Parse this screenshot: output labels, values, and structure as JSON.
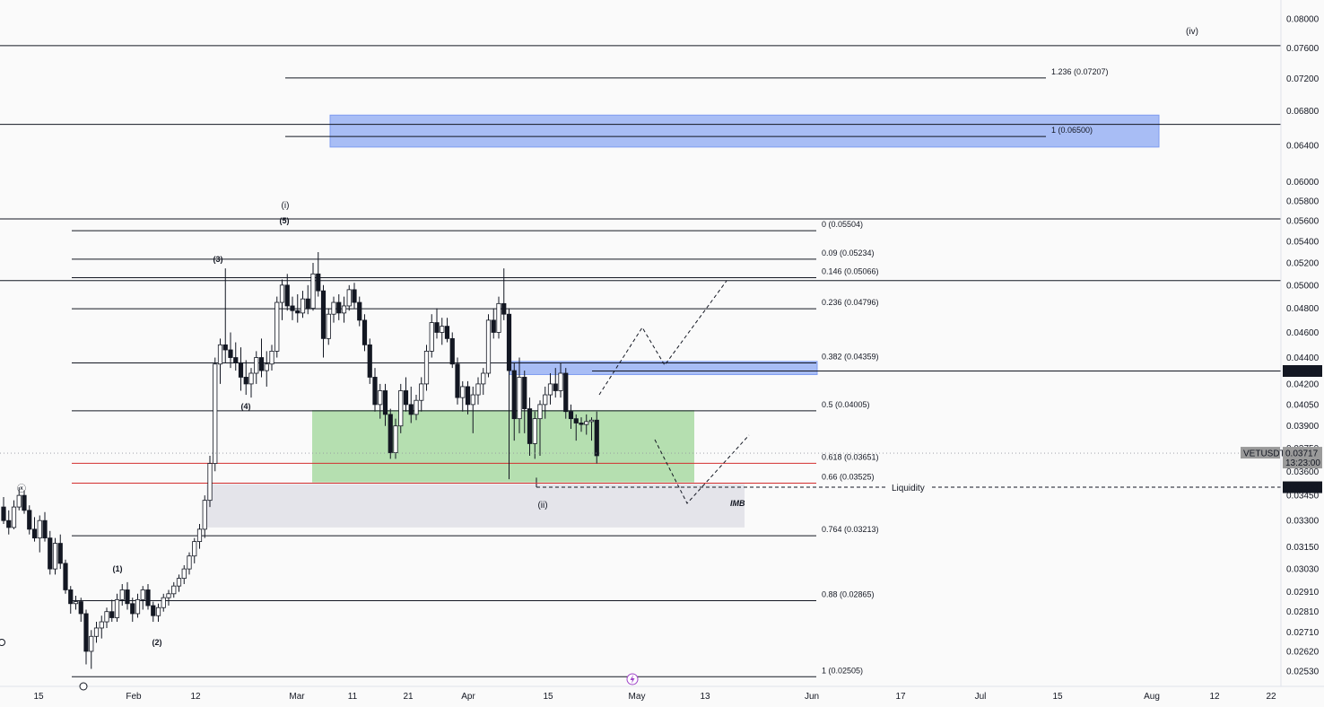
{
  "symbol": "VETUSDT",
  "last_price": "0.03717",
  "countdown": "13:23:00",
  "price_axis": [
    "0.08000",
    "0.07600",
    "0.07200",
    "0.06800",
    "0.06400",
    "0.06000",
    "0.05800",
    "0.05600",
    "0.05400",
    "0.05200",
    "0.05000",
    "0.04800",
    "0.04600",
    "0.04400",
    "0.04200",
    "0.04050",
    "0.03900",
    "0.03750",
    "0.03600",
    "0.03450",
    "0.03300",
    "0.03150",
    "0.03030",
    "0.02910",
    "0.02810",
    "0.02710",
    "0.02620",
    "0.02530"
  ],
  "time_axis": [
    "15",
    "Feb",
    "12",
    "Mar",
    "11",
    "21",
    "Apr",
    "15",
    "May",
    "13",
    "Jun",
    "17",
    "Jul",
    "15",
    "Aug",
    "12",
    "22"
  ],
  "markers": {
    "resistance": "0.04297",
    "liquidity_level": "0.03500",
    "liquidity_text": "Liquidity",
    "imb_text": "IMB"
  },
  "fib_retracement": [
    {
      "label": "0 (0.05504)",
      "color": "#131722"
    },
    {
      "label": "0.09 (0.05234)",
      "color": "#131722"
    },
    {
      "label": "0.146 (0.05066)",
      "color": "#131722"
    },
    {
      "label": "0.236 (0.04796)",
      "color": "#131722"
    },
    {
      "label": "0.382 (0.04359)",
      "color": "#131722"
    },
    {
      "label": "0.5 (0.04005)",
      "color": "#131722"
    },
    {
      "label": "0.618 (0.03651)",
      "color": "#d32f2f"
    },
    {
      "label": "0.66 (0.03525)",
      "color": "#d32f2f"
    },
    {
      "label": "0.764 (0.03213)",
      "color": "#131722"
    },
    {
      "label": "0.88 (0.02865)",
      "color": "#131722"
    },
    {
      "label": "1 (0.02505)",
      "color": "#131722"
    }
  ],
  "fib_extension": [
    {
      "label": "1.236 (0.07207)"
    },
    {
      "label": "1 (0.06500)"
    }
  ],
  "wave_labels": [
    "(i)",
    "(ii)",
    "(iv)",
    "(1)",
    "(2)",
    "(3)",
    "(4)",
    "(5)",
    "ⓧ"
  ],
  "colors": {
    "up_candle": "#ffffff",
    "down_candle": "#131722",
    "blue_zone": "#a8bdf5",
    "green_zone": "#b5dfb0",
    "imb_zone": "#e4e4ea",
    "red_line": "#d32f2f",
    "price_tag": "#131722"
  },
  "chart_data": {
    "type": "candlestick",
    "symbol": "VETUSDT",
    "interval": "1D",
    "y_scale": "log",
    "ylim": [
      0.0245,
      0.081
    ],
    "last_close": 0.03717,
    "levels": {
      "fib_retracement": [
        {
          "ratio": 0,
          "price": 0.05504
        },
        {
          "ratio": 0.09,
          "price": 0.05234
        },
        {
          "ratio": 0.146,
          "price": 0.05066
        },
        {
          "ratio": 0.236,
          "price": 0.04796
        },
        {
          "ratio": 0.382,
          "price": 0.04359
        },
        {
          "ratio": 0.5,
          "price": 0.04005
        },
        {
          "ratio": 0.618,
          "price": 0.03651
        },
        {
          "ratio": 0.66,
          "price": 0.03525
        },
        {
          "ratio": 0.764,
          "price": 0.03213
        },
        {
          "ratio": 0.88,
          "price": 0.02865
        },
        {
          "ratio": 1,
          "price": 0.02505
        }
      ],
      "fib_extension": [
        {
          "ratio": 1.236,
          "price": 0.07207
        },
        {
          "ratio": 1,
          "price": 0.065
        }
      ],
      "horizontal": [
        0.0763,
        0.0664,
        0.0562,
        0.0504,
        0.04297,
        0.035
      ]
    },
    "zones": [
      {
        "name": "blue-upper",
        "low": 0.0638,
        "high": 0.0675
      },
      {
        "name": "blue-lower",
        "low": 0.0427,
        "high": 0.0437
      },
      {
        "name": "green",
        "low": 0.0353,
        "high": 0.0401
      },
      {
        "name": "imb",
        "low": 0.0326,
        "high": 0.0352
      }
    ],
    "candles": [
      [
        0.0338,
        0.0344,
        0.0328,
        0.033
      ],
      [
        0.033,
        0.0336,
        0.0322,
        0.0326
      ],
      [
        0.0326,
        0.0342,
        0.0325,
        0.0338
      ],
      [
        0.0338,
        0.035,
        0.0336,
        0.0345
      ],
      [
        0.0345,
        0.0348,
        0.0334,
        0.0336
      ],
      [
        0.0336,
        0.0339,
        0.0322,
        0.0325
      ],
      [
        0.0325,
        0.0332,
        0.0318,
        0.032
      ],
      [
        0.032,
        0.0333,
        0.0312,
        0.033
      ],
      [
        0.033,
        0.0335,
        0.0318,
        0.032
      ],
      [
        0.032,
        0.0324,
        0.03,
        0.0303
      ],
      [
        0.0303,
        0.032,
        0.03,
        0.0317
      ],
      [
        0.0317,
        0.0322,
        0.0303,
        0.0306
      ],
      [
        0.0306,
        0.0308,
        0.029,
        0.0292
      ],
      [
        0.0292,
        0.0294,
        0.028,
        0.0285
      ],
      [
        0.0285,
        0.0289,
        0.0282,
        0.0286
      ],
      [
        0.0286,
        0.0288,
        0.0276,
        0.028
      ],
      [
        0.028,
        0.0282,
        0.0256,
        0.0262
      ],
      [
        0.0262,
        0.0272,
        0.0254,
        0.0269
      ],
      [
        0.0269,
        0.0276,
        0.0266,
        0.0273
      ],
      [
        0.0273,
        0.0279,
        0.0268,
        0.0276
      ],
      [
        0.0276,
        0.0283,
        0.0273,
        0.0281
      ],
      [
        0.0281,
        0.0287,
        0.0276,
        0.0278
      ],
      [
        0.0278,
        0.029,
        0.0276,
        0.0287
      ],
      [
        0.0287,
        0.0295,
        0.0284,
        0.0292
      ],
      [
        0.0292,
        0.0296,
        0.0282,
        0.0285
      ],
      [
        0.0285,
        0.0288,
        0.0276,
        0.028
      ],
      [
        0.028,
        0.029,
        0.0278,
        0.0287
      ],
      [
        0.0287,
        0.0294,
        0.0282,
        0.0292
      ],
      [
        0.0292,
        0.0295,
        0.0282,
        0.0284
      ],
      [
        0.0284,
        0.0286,
        0.0276,
        0.0279
      ],
      [
        0.0279,
        0.0285,
        0.0276,
        0.0283
      ],
      [
        0.0283,
        0.029,
        0.0281,
        0.0288
      ],
      [
        0.0288,
        0.0292,
        0.0284,
        0.029
      ],
      [
        0.029,
        0.0296,
        0.0288,
        0.0294
      ],
      [
        0.0294,
        0.03,
        0.0291,
        0.0298
      ],
      [
        0.0298,
        0.0305,
        0.0295,
        0.0303
      ],
      [
        0.0303,
        0.0312,
        0.03,
        0.031
      ],
      [
        0.031,
        0.032,
        0.0306,
        0.0318
      ],
      [
        0.0318,
        0.0328,
        0.0314,
        0.0325
      ],
      [
        0.0325,
        0.0345,
        0.032,
        0.0342
      ],
      [
        0.0342,
        0.037,
        0.0338,
        0.0365
      ],
      [
        0.0365,
        0.044,
        0.036,
        0.0435
      ],
      [
        0.0435,
        0.0455,
        0.042,
        0.045
      ],
      [
        0.045,
        0.0515,
        0.0436,
        0.0446
      ],
      [
        0.0446,
        0.046,
        0.0432,
        0.044
      ],
      [
        0.044,
        0.0452,
        0.043,
        0.0436
      ],
      [
        0.0436,
        0.0448,
        0.0415,
        0.0425
      ],
      [
        0.0425,
        0.0438,
        0.0412,
        0.042
      ],
      [
        0.042,
        0.0432,
        0.041,
        0.0428
      ],
      [
        0.0428,
        0.0445,
        0.042,
        0.044
      ],
      [
        0.044,
        0.0455,
        0.0425,
        0.043
      ],
      [
        0.043,
        0.0445,
        0.0418,
        0.0435
      ],
      [
        0.0435,
        0.045,
        0.043,
        0.0445
      ],
      [
        0.0445,
        0.049,
        0.044,
        0.0485
      ],
      [
        0.0485,
        0.0505,
        0.047,
        0.05
      ],
      [
        0.05,
        0.051,
        0.0478,
        0.0482
      ],
      [
        0.0482,
        0.049,
        0.047,
        0.0478
      ],
      [
        0.0478,
        0.0492,
        0.0468,
        0.0476
      ],
      [
        0.0476,
        0.0495,
        0.0472,
        0.0488
      ],
      [
        0.0488,
        0.05,
        0.0475,
        0.048
      ],
      [
        0.048,
        0.052,
        0.0478,
        0.051
      ],
      [
        0.051,
        0.053,
        0.049,
        0.0495
      ],
      [
        0.0495,
        0.05,
        0.044,
        0.0455
      ],
      [
        0.0455,
        0.048,
        0.045,
        0.0475
      ],
      [
        0.0475,
        0.049,
        0.0468,
        0.0485
      ],
      [
        0.0485,
        0.0492,
        0.047,
        0.0476
      ],
      [
        0.0476,
        0.049,
        0.0468,
        0.0482
      ],
      [
        0.0482,
        0.05,
        0.0478,
        0.0496
      ],
      [
        0.0496,
        0.0502,
        0.048,
        0.0485
      ],
      [
        0.0485,
        0.049,
        0.0465,
        0.047
      ],
      [
        0.047,
        0.0475,
        0.0445,
        0.045
      ],
      [
        0.045,
        0.0455,
        0.042,
        0.0425
      ],
      [
        0.0425,
        0.0432,
        0.04,
        0.0405
      ],
      [
        0.0405,
        0.042,
        0.0395,
        0.0415
      ],
      [
        0.0415,
        0.042,
        0.039,
        0.0398
      ],
      [
        0.0398,
        0.0402,
        0.0368,
        0.0372
      ],
      [
        0.0372,
        0.0395,
        0.0368,
        0.039
      ],
      [
        0.039,
        0.042,
        0.0385,
        0.0415
      ],
      [
        0.0415,
        0.0425,
        0.04,
        0.0405
      ],
      [
        0.0405,
        0.0418,
        0.0392,
        0.0398
      ],
      [
        0.0398,
        0.0412,
        0.0394,
        0.0408
      ],
      [
        0.0408,
        0.0425,
        0.04,
        0.042
      ],
      [
        0.042,
        0.045,
        0.0415,
        0.0445
      ],
      [
        0.0445,
        0.0475,
        0.044,
        0.0468
      ],
      [
        0.0468,
        0.048,
        0.0455,
        0.046
      ],
      [
        0.046,
        0.0472,
        0.045,
        0.0465
      ],
      [
        0.0465,
        0.0472,
        0.0452,
        0.0455
      ],
      [
        0.0455,
        0.046,
        0.0432,
        0.0435
      ],
      [
        0.0435,
        0.044,
        0.0405,
        0.041
      ],
      [
        0.041,
        0.0422,
        0.04,
        0.0418
      ],
      [
        0.0418,
        0.0422,
        0.0398,
        0.0405
      ],
      [
        0.0405,
        0.0418,
        0.0385,
        0.0412
      ],
      [
        0.0412,
        0.0425,
        0.0405,
        0.042
      ],
      [
        0.042,
        0.0432,
        0.0412,
        0.0428
      ],
      [
        0.0428,
        0.0475,
        0.0425,
        0.047
      ],
      [
        0.047,
        0.048,
        0.0455,
        0.046
      ],
      [
        0.046,
        0.049,
        0.0455,
        0.0484
      ],
      [
        0.0484,
        0.0515,
        0.047,
        0.0475
      ],
      [
        0.0475,
        0.048,
        0.0355,
        0.043
      ],
      [
        0.043,
        0.0436,
        0.038,
        0.0395
      ],
      [
        0.0395,
        0.044,
        0.0385,
        0.0425
      ],
      [
        0.0425,
        0.043,
        0.0385,
        0.0402
      ],
      [
        0.0402,
        0.041,
        0.037,
        0.0378
      ],
      [
        0.0378,
        0.04,
        0.0368,
        0.0395
      ],
      [
        0.0395,
        0.0408,
        0.037,
        0.0405
      ],
      [
        0.0405,
        0.0418,
        0.0395,
        0.0412
      ],
      [
        0.0412,
        0.0428,
        0.0405,
        0.042
      ],
      [
        0.042,
        0.0432,
        0.041,
        0.0415
      ],
      [
        0.0415,
        0.0436,
        0.041,
        0.0428
      ],
      [
        0.0428,
        0.0432,
        0.0395,
        0.04
      ],
      [
        0.04,
        0.0405,
        0.0388,
        0.0395
      ],
      [
        0.0395,
        0.0398,
        0.038,
        0.0392
      ],
      [
        0.0392,
        0.0396,
        0.0386,
        0.0391
      ],
      [
        0.0391,
        0.0398,
        0.0384,
        0.0393
      ],
      [
        0.0393,
        0.0396,
        0.038,
        0.0394
      ],
      [
        0.0394,
        0.04,
        0.0365,
        0.037
      ]
    ]
  }
}
